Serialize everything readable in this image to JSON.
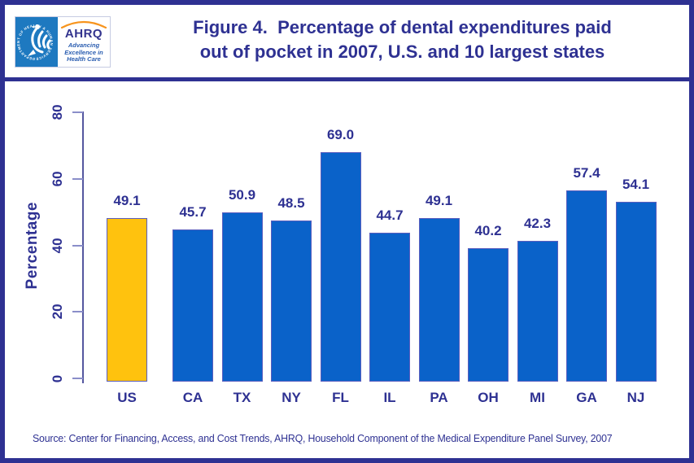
{
  "header": {
    "title_line1": "Figure 4.  Percentage of dental expenditures paid",
    "title_line2": "out of pocket in 2007, U.S. and 10 largest states",
    "logo": {
      "ahrq_word": "AHRQ",
      "ahrq_tagline": "Advancing Excellence in Health Care",
      "hhs_seal_text": "DEPARTMENT OF HEALTH & HUMAN SERVICES • USA"
    }
  },
  "chart_data": {
    "type": "bar",
    "title": "Figure 4. Percentage of dental expenditures paid out of pocket in 2007, U.S. and 10 largest states",
    "categories": [
      "US",
      "CA",
      "TX",
      "NY",
      "FL",
      "IL",
      "PA",
      "OH",
      "MI",
      "GA",
      "NJ"
    ],
    "values": [
      49.1,
      45.7,
      50.9,
      48.5,
      69.0,
      44.7,
      49.1,
      40.2,
      42.3,
      57.4,
      54.1
    ],
    "value_labels": [
      "49.1",
      "45.7",
      "50.9",
      "48.5",
      "69.0",
      "44.7",
      "49.1",
      "40.2",
      "42.3",
      "57.4",
      "54.1"
    ],
    "xlabel": "",
    "ylabel": "Percentage",
    "ylim": [
      0,
      80
    ],
    "yticks": [
      0,
      20,
      40,
      60,
      80
    ],
    "grid": false,
    "legend": "none",
    "highlight_category": "US",
    "bar_colors": {
      "default": "#0A62C9",
      "highlight": "#FFC20E"
    }
  },
  "source": "Source: Center for Financing, Access, and Cost Trends, AHRQ, Household Component of the Medical Expenditure Panel Survey, 2007",
  "colors": {
    "navy": "#2E3192",
    "bar_blue": "#0A62C9",
    "bar_yellow": "#FFC20E",
    "axis": "#54579F",
    "hhs_blue": "#1E79C0",
    "arc_orange": "#F7941D"
  }
}
